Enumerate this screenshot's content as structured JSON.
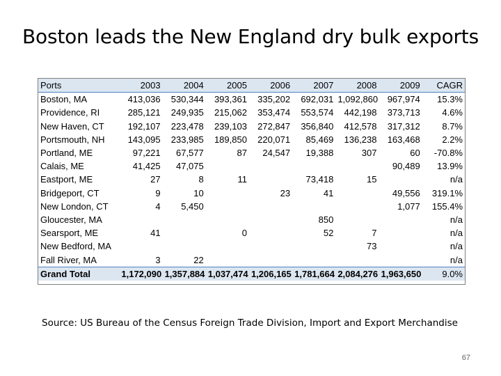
{
  "title": "Boston leads the New England dry bulk exports",
  "table": {
    "headers": [
      "Ports",
      "2003",
      "2004",
      "2005",
      "2006",
      "2007",
      "2008",
      "2009",
      "CAGR"
    ],
    "rows": [
      [
        "Boston, MA",
        "413,036",
        "530,344",
        "393,361",
        "335,202",
        "692,031",
        "1,092,860",
        "967,974",
        "15.3%"
      ],
      [
        "Providence, RI",
        "285,121",
        "249,935",
        "215,062",
        "353,474",
        "553,574",
        "442,198",
        "373,713",
        "4.6%"
      ],
      [
        "New Haven, CT",
        "192,107",
        "223,478",
        "239,103",
        "272,847",
        "356,840",
        "412,578",
        "317,312",
        "8.7%"
      ],
      [
        "Portsmouth, NH",
        "143,095",
        "233,985",
        "189,850",
        "220,071",
        "85,469",
        "136,238",
        "163,468",
        "2.2%"
      ],
      [
        "Portland, ME",
        "97,221",
        "67,577",
        "87",
        "24,547",
        "19,388",
        "307",
        "60",
        "-70.8%"
      ],
      [
        "Calais, ME",
        "41,425",
        "47,075",
        "",
        "",
        "",
        "",
        "90,489",
        "13.9%"
      ],
      [
        "Eastport, ME",
        "27",
        "8",
        "11",
        "",
        "73,418",
        "15",
        "",
        "n/a"
      ],
      [
        "Bridgeport, CT",
        "9",
        "10",
        "",
        "23",
        "41",
        "",
        "49,556",
        "319.1%"
      ],
      [
        "New London, CT",
        "4",
        "5,450",
        "",
        "",
        "",
        "",
        "1,077",
        "155.4%"
      ],
      [
        "Gloucester, MA",
        "",
        "",
        "",
        "",
        "850",
        "",
        "",
        "n/a"
      ],
      [
        "Searsport, ME",
        "41",
        "",
        "0",
        "",
        "52",
        "7",
        "",
        "n/a"
      ],
      [
        "New Bedford, MA",
        "",
        "",
        "",
        "",
        "",
        "73",
        "",
        "n/a"
      ],
      [
        "Fall River, MA",
        "3",
        "22",
        "",
        "",
        "",
        "",
        "",
        "n/a"
      ]
    ],
    "total": [
      "Grand Total",
      "1,172,090",
      "1,357,884",
      "1,037,474",
      "1,206,165",
      "1,781,664",
      "2,084,276",
      "1,963,650",
      "9.0%"
    ]
  },
  "source": "Source: US Bureau of the Census Foreign Trade Division, Import and Export Merchandise",
  "page_number": "67",
  "colors": {
    "header_fill": "#dce6f1",
    "header_rule": "#4f81bd",
    "border": "#7f7f7f"
  }
}
